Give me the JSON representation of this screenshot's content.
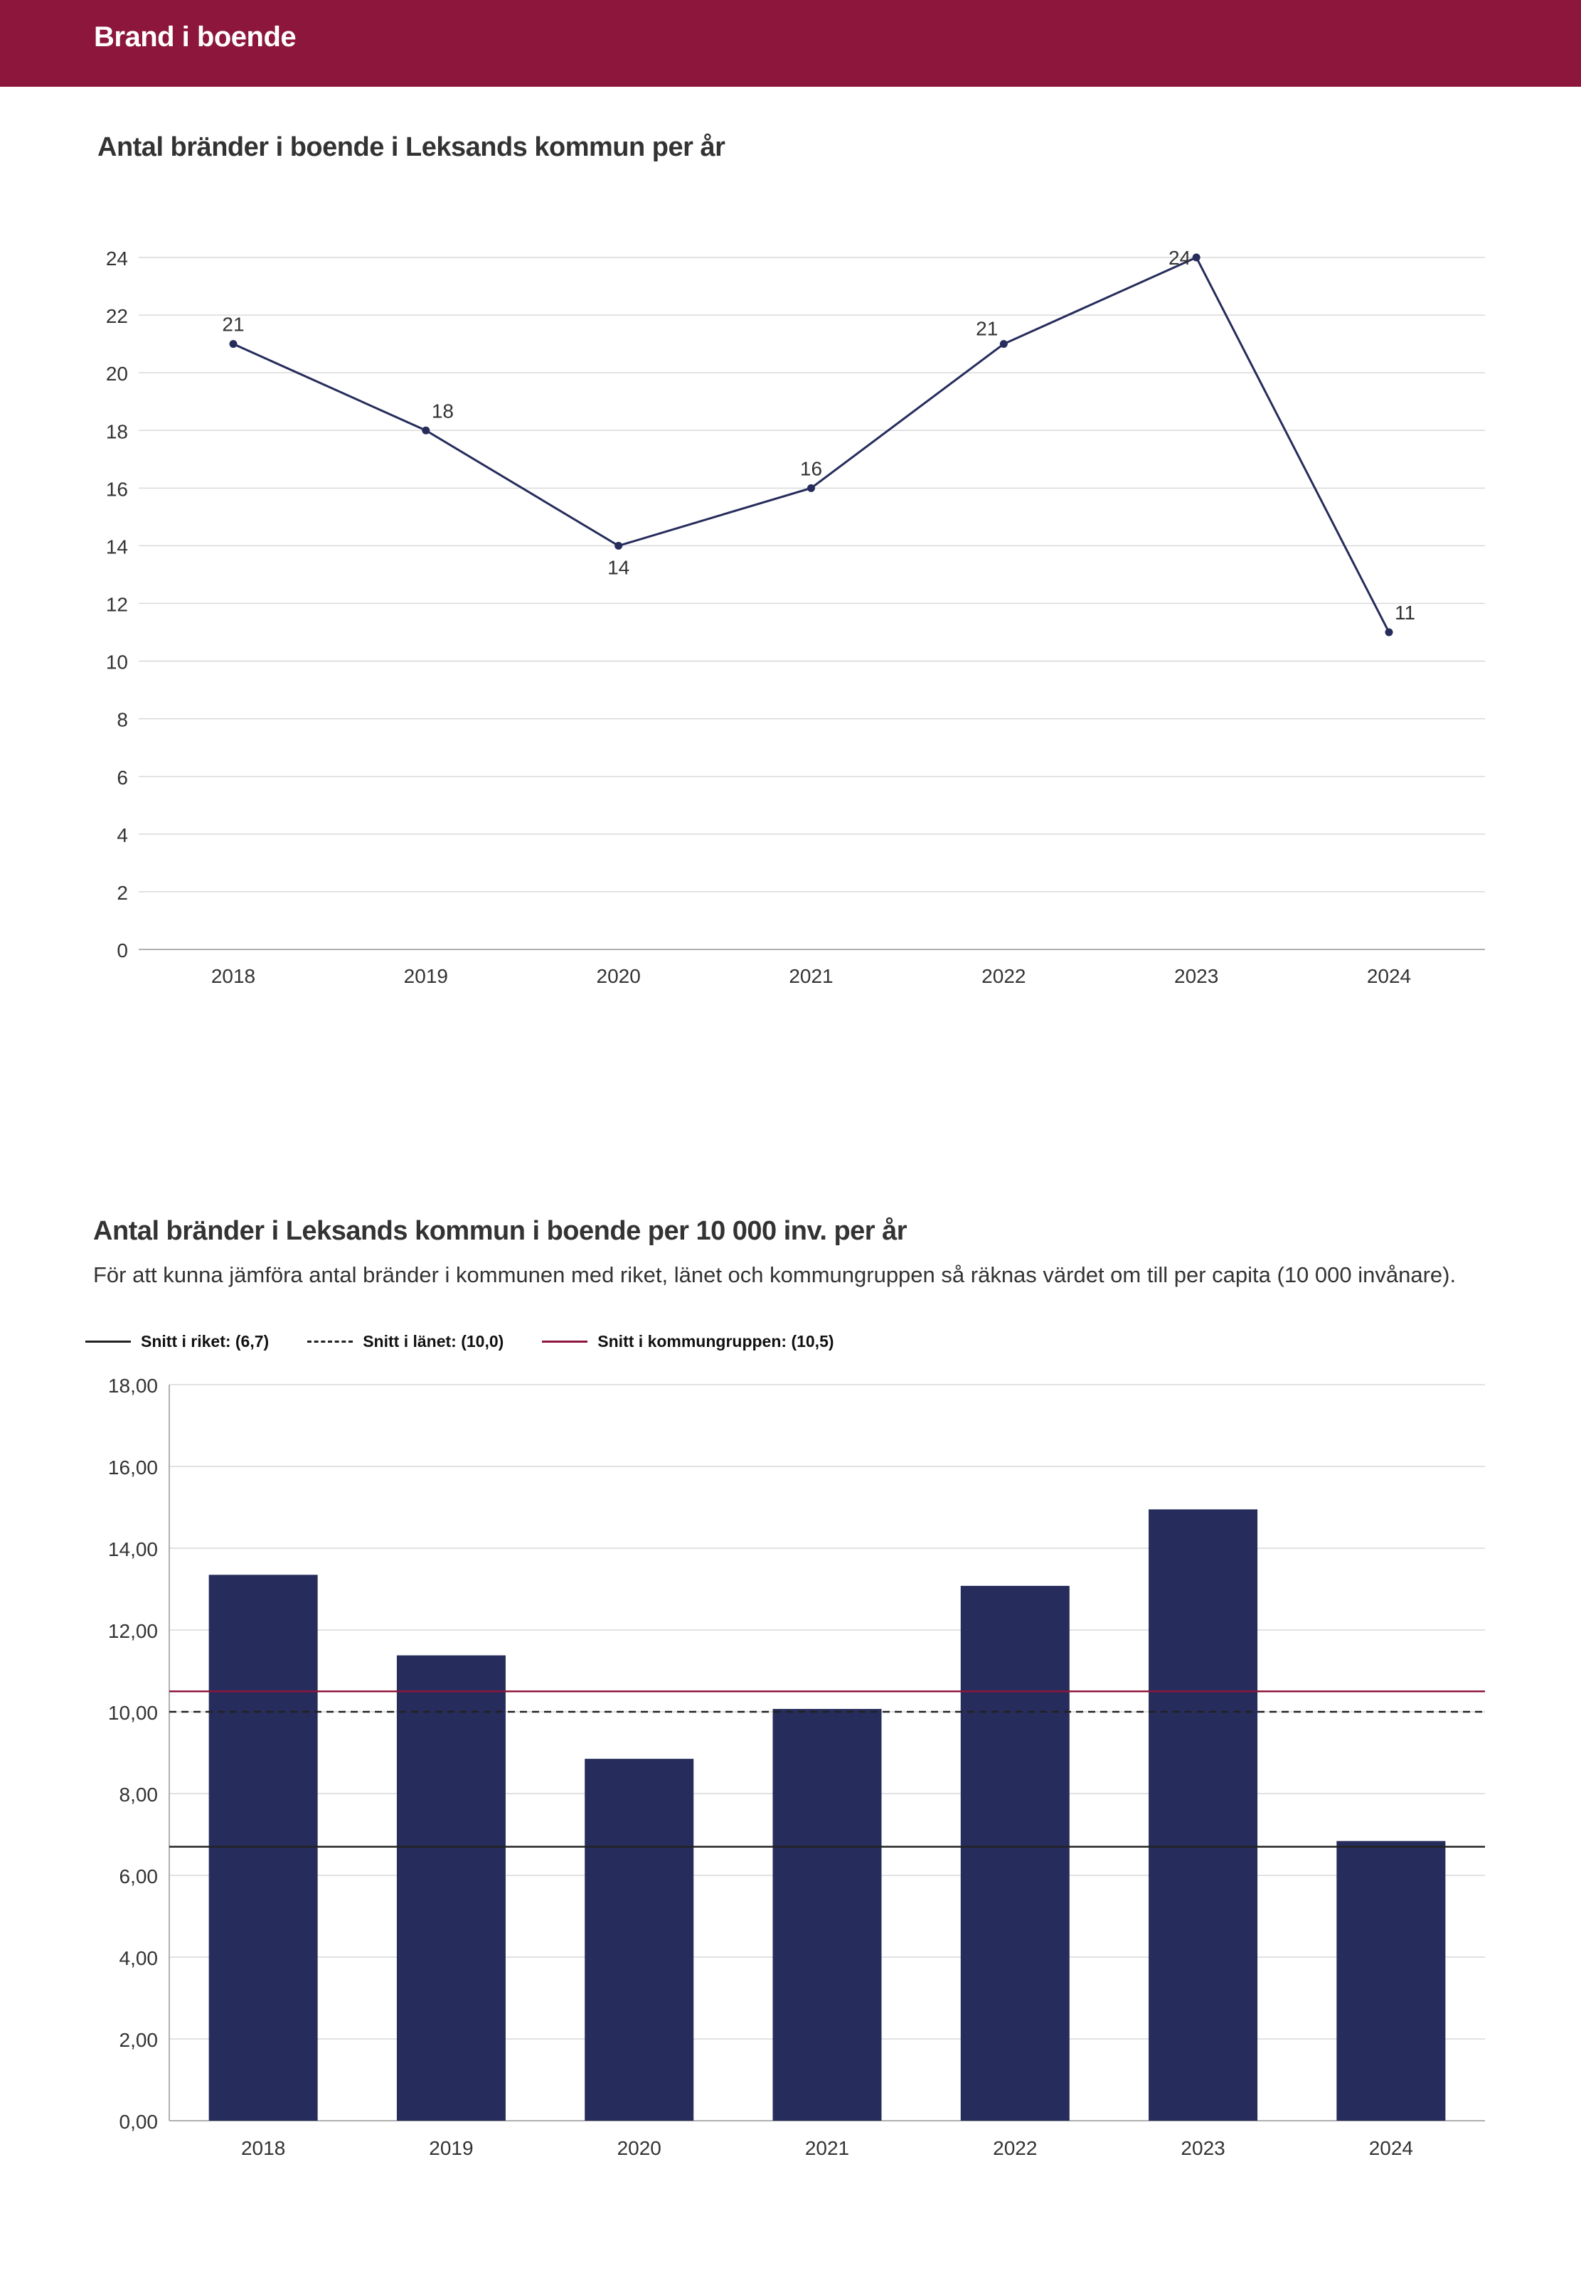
{
  "header": {
    "title": "Brand i boende"
  },
  "colors": {
    "header_bg": "#8c163c",
    "series": "#262c5b",
    "riket": "#222222",
    "lanet": "#222222",
    "kommungrupp": "#8c163c",
    "grid": "#d9d9d9"
  },
  "chart1": {
    "title": "Antal bränder i boende i Leksands kommun per år"
  },
  "chart2": {
    "title": "Antal bränder i Leksands kommun i boende per 10 000 inv. per år",
    "description": "För att kunna jämföra antal bränder i kommunen med riket, länet och kommungruppen så räknas värdet om till per capita (10 000 invånare).",
    "legend": {
      "riket": "Snitt i riket: (6,7)",
      "lanet": "Snitt i länet: (10,0)",
      "kommungrupp": "Snitt i kommungruppen: (10,5)"
    }
  },
  "chart_data": [
    {
      "type": "line",
      "title": "Antal bränder i boende i Leksands kommun per år",
      "xlabel": "",
      "ylabel": "",
      "categories": [
        "2018",
        "2019",
        "2020",
        "2021",
        "2022",
        "2023",
        "2024"
      ],
      "values": [
        21,
        18,
        14,
        16,
        21,
        24,
        11
      ],
      "data_labels": [
        "21",
        "18",
        "14",
        "16",
        "21",
        "24",
        "11"
      ],
      "ylim": [
        0,
        24
      ],
      "yticks": [
        0,
        2,
        4,
        6,
        8,
        10,
        12,
        14,
        16,
        18,
        20,
        22,
        24
      ],
      "ytick_labels": [
        "0",
        "2",
        "4",
        "6",
        "8",
        "10",
        "12",
        "14",
        "16",
        "18",
        "20",
        "22",
        "24"
      ],
      "grid": true,
      "legend": "none"
    },
    {
      "type": "bar",
      "title": "Antal bränder i Leksands kommun i boende per 10 000 inv. per år",
      "xlabel": "",
      "ylabel": "",
      "categories": [
        "2018",
        "2019",
        "2020",
        "2021",
        "2022",
        "2023",
        "2024"
      ],
      "values": [
        13.35,
        11.38,
        8.85,
        10.07,
        13.08,
        14.95,
        6.84
      ],
      "ylim": [
        0,
        18
      ],
      "yticks": [
        0,
        2,
        4,
        6,
        8,
        10,
        12,
        14,
        16,
        18
      ],
      "ytick_labels": [
        "0,00",
        "2,00",
        "4,00",
        "6,00",
        "8,00",
        "10,00",
        "12,00",
        "14,00",
        "16,00",
        "18,00"
      ],
      "reference_lines": [
        {
          "name": "Snitt i riket: (6,7)",
          "value": 6.7,
          "style": "solid",
          "color": "#222222"
        },
        {
          "name": "Snitt i länet: (10,0)",
          "value": 10.0,
          "style": "dashed",
          "color": "#222222"
        },
        {
          "name": "Snitt i kommungruppen: (10,5)",
          "value": 10.5,
          "style": "solid",
          "color": "#8c163c"
        }
      ],
      "grid": true,
      "legend": "top-left"
    }
  ]
}
